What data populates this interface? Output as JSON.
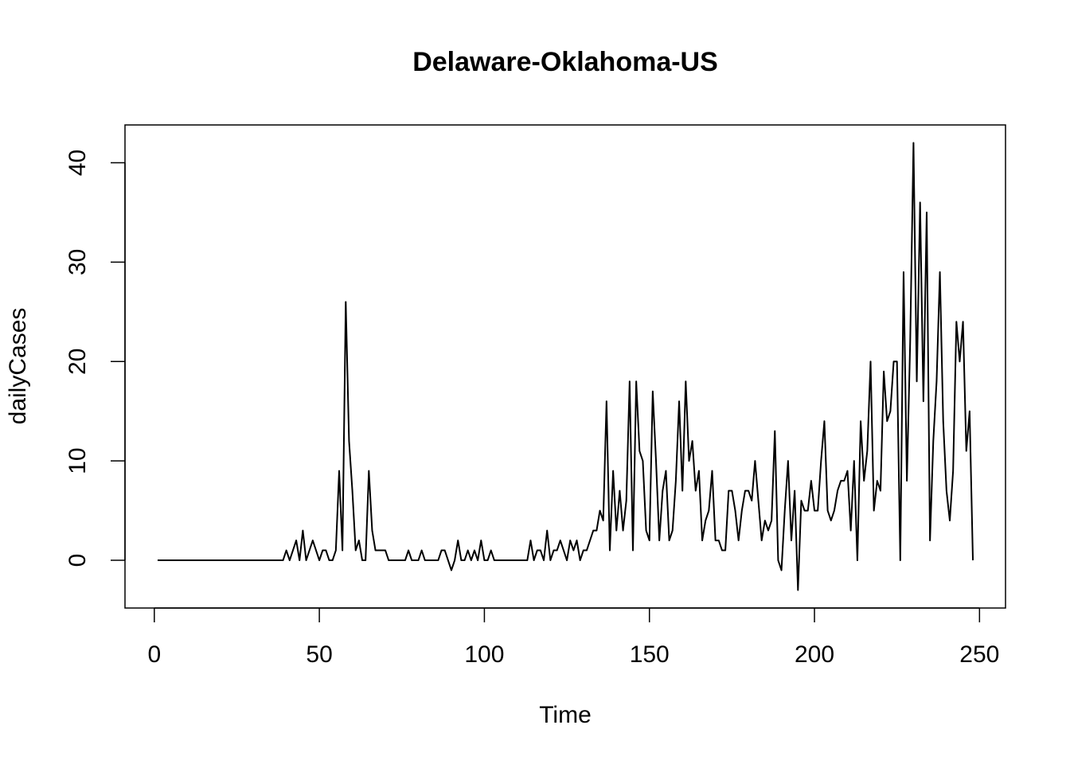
{
  "chart_data": {
    "type": "line",
    "title": "Delaware-Oklahoma-US",
    "xlabel": "Time",
    "ylabel": "dailyCases",
    "x": [
      1,
      2,
      3,
      4,
      5,
      6,
      7,
      8,
      9,
      10,
      11,
      12,
      13,
      14,
      15,
      16,
      17,
      18,
      19,
      20,
      21,
      22,
      23,
      24,
      25,
      26,
      27,
      28,
      29,
      30,
      31,
      32,
      33,
      34,
      35,
      36,
      37,
      38,
      39,
      40,
      41,
      42,
      43,
      44,
      45,
      46,
      47,
      48,
      49,
      50,
      51,
      52,
      53,
      54,
      55,
      56,
      57,
      58,
      59,
      60,
      61,
      62,
      63,
      64,
      65,
      66,
      67,
      68,
      69,
      70,
      71,
      72,
      73,
      74,
      75,
      76,
      77,
      78,
      79,
      80,
      81,
      82,
      83,
      84,
      85,
      86,
      87,
      88,
      89,
      90,
      91,
      92,
      93,
      94,
      95,
      96,
      97,
      98,
      99,
      100,
      101,
      102,
      103,
      104,
      105,
      106,
      107,
      108,
      109,
      110,
      111,
      112,
      113,
      114,
      115,
      116,
      117,
      118,
      119,
      120,
      121,
      122,
      123,
      124,
      125,
      126,
      127,
      128,
      129,
      130,
      131,
      132,
      133,
      134,
      135,
      136,
      137,
      138,
      139,
      140,
      141,
      142,
      143,
      144,
      145,
      146,
      147,
      148,
      149,
      150,
      151,
      152,
      153,
      154,
      155,
      156,
      157,
      158,
      159,
      160,
      161,
      162,
      163,
      164,
      165,
      166,
      167,
      168,
      169,
      170,
      171,
      172,
      173,
      174,
      175,
      176,
      177,
      178,
      179,
      180,
      181,
      182,
      183,
      184,
      185,
      186,
      187,
      188,
      189,
      190,
      191,
      192,
      193,
      194,
      195,
      196,
      197,
      198,
      199,
      200,
      201,
      202,
      203,
      204,
      205,
      206,
      207,
      208,
      209,
      210,
      211,
      212,
      213,
      214,
      215,
      216,
      217,
      218,
      219,
      220,
      221,
      222,
      223,
      224,
      225,
      226,
      227,
      228,
      229,
      230,
      231,
      232,
      233,
      234,
      235,
      236,
      237,
      238,
      239,
      240,
      241,
      242,
      243,
      244,
      245,
      246,
      247,
      248
    ],
    "series": [
      {
        "name": "dailyCases",
        "color": "#000000",
        "values": [
          0,
          0,
          0,
          0,
          0,
          0,
          0,
          0,
          0,
          0,
          0,
          0,
          0,
          0,
          0,
          0,
          0,
          0,
          0,
          0,
          0,
          0,
          0,
          0,
          0,
          0,
          0,
          0,
          0,
          0,
          0,
          0,
          0,
          0,
          0,
          0,
          0,
          0,
          0,
          1,
          0,
          1,
          2,
          0,
          3,
          0,
          1,
          2,
          1,
          0,
          1,
          1,
          0,
          0,
          1,
          9,
          1,
          26,
          12,
          7,
          1,
          2,
          0,
          0,
          9,
          3,
          1,
          1,
          1,
          1,
          0,
          0,
          0,
          0,
          0,
          0,
          1,
          0,
          0,
          0,
          1,
          0,
          0,
          0,
          0,
          0,
          1,
          1,
          0,
          -1,
          0,
          2,
          0,
          0,
          1,
          0,
          1,
          0,
          2,
          0,
          0,
          1,
          0,
          0,
          0,
          0,
          0,
          0,
          0,
          0,
          0,
          0,
          0,
          2,
          0,
          1,
          1,
          0,
          3,
          0,
          1,
          1,
          2,
          1,
          0,
          2,
          1,
          2,
          0,
          1,
          1,
          2,
          3,
          3,
          5,
          4,
          16,
          1,
          9,
          3,
          7,
          3,
          6,
          18,
          1,
          18,
          11,
          10,
          3,
          2,
          17,
          10,
          2,
          7,
          9,
          2,
          3,
          8,
          16,
          7,
          18,
          10,
          12,
          7,
          9,
          2,
          4,
          5,
          9,
          2,
          2,
          1,
          1,
          7,
          7,
          5,
          2,
          5,
          7,
          7,
          6,
          10,
          6,
          2,
          4,
          3,
          4,
          13,
          0,
          -1,
          5,
          10,
          2,
          7,
          -3,
          6,
          5,
          5,
          8,
          5,
          5,
          10,
          14,
          5,
          4,
          5,
          7,
          8,
          8,
          9,
          3,
          10,
          0,
          14,
          8,
          11,
          20,
          5,
          8,
          7,
          19,
          14,
          15,
          20,
          20,
          0,
          29,
          8,
          22,
          42,
          18,
          36,
          16,
          35,
          2,
          12,
          18,
          29,
          14,
          7,
          4,
          9,
          24,
          20,
          24,
          11,
          15,
          0
        ]
      }
    ],
    "xlim": [
      -8.88,
      257.88
    ],
    "ylim": [
      -4.8,
      43.8
    ],
    "xticks": [
      0,
      50,
      100,
      150,
      200,
      250
    ],
    "yticks": [
      0,
      10,
      20,
      30,
      40
    ]
  }
}
